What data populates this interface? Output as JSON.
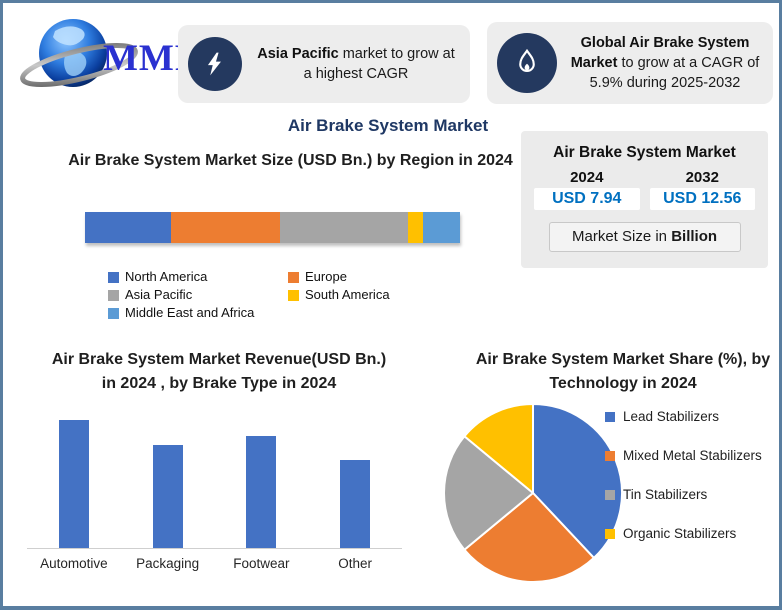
{
  "logo": {
    "text": "MMR"
  },
  "header_badges": [
    {
      "icon": "lightning-icon",
      "bold_text": "Asia Pacific",
      "regular_text": " market to grow at a highest CAGR"
    },
    {
      "icon": "flame-icon",
      "bold_text": "Global Air Brake System Market",
      "regular_text": " to grow at a CAGR of 5.9% during 2025-2032"
    }
  ],
  "main_title": "Air Brake System Market",
  "summary_panel": {
    "title": "Air Brake System Market",
    "columns": [
      {
        "year": "2024",
        "value": "USD 7.94"
      },
      {
        "year": "2032",
        "value": "USD 12.56"
      }
    ],
    "note_regular": "Market Size in ",
    "note_bold": "Billion",
    "value_color": "#0070C0",
    "panel_bg": "#EBEBEB"
  },
  "chart_data": [
    {
      "type": "bar",
      "subtype": "stacked-horizontal-single-bar",
      "title": "Air Brake System Market Size (USD Bn.) by Region in 2024",
      "categories": [
        "North America",
        "Europe",
        "Asia Pacific",
        "South America",
        "Middle East and Africa"
      ],
      "values": [
        23,
        29,
        34,
        4,
        10
      ],
      "unit": "% share of bar width (estimated)",
      "colors": [
        "#4472C4",
        "#ED7D31",
        "#A5A5A5",
        "#FFC000",
        "#5B9BD5"
      ],
      "legend_position": "bottom",
      "axes_shown": false
    },
    {
      "type": "bar",
      "title": "Air Brake System Market Revenue(USD Bn.) in 2024 , by Brake Type in 2024",
      "categories": [
        "Automotive",
        "Packaging",
        "Footwear",
        "Other"
      ],
      "values": [
        100,
        80,
        87,
        69
      ],
      "unit": "relative height (no value axis shown)",
      "ylim": [
        0,
        110
      ],
      "bar_color": "#4472C4",
      "grid": false,
      "legend_position": "none"
    },
    {
      "type": "pie",
      "title": "Air Brake System Market Share (%), by Technology in 2024",
      "categories": [
        "Lead Stabilizers",
        "Mixed Metal Stabilizers",
        "Tin Stabilizers",
        "Organic Stabilizers"
      ],
      "values": [
        38,
        26,
        22,
        14
      ],
      "unit": "% (estimated from slice angles)",
      "colors": [
        "#4472C4",
        "#ED7D31",
        "#A5A5A5",
        "#FFC000"
      ],
      "start_angle_deg_from_top": 0,
      "direction": "clockwise",
      "legend_position": "right"
    }
  ]
}
